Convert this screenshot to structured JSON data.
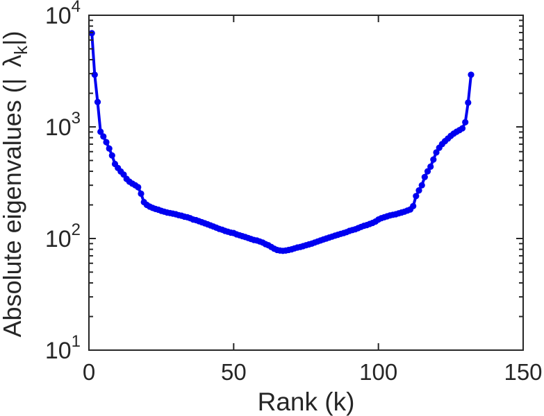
{
  "figure": {
    "background_color": "#ffffff",
    "axis_color": "#262626",
    "line_color": "#0000f0",
    "marker_shape": "filled-circle"
  },
  "chart_data": {
    "type": "line",
    "title": "",
    "xlabel": "Rank (k)",
    "ylabel": "Absolute eigenvalues (|λk|)",
    "ylabel_parts": {
      "prefix": "Absolute eigenvalues (|",
      "symbol": "λ",
      "symbol_subscript": "k",
      "suffix": "|)"
    },
    "x_axis": {
      "scale": "linear",
      "min": 0,
      "max": 150,
      "ticks": [
        0,
        50,
        100,
        150
      ],
      "tick_labels": [
        "0",
        "50",
        "100",
        "150"
      ]
    },
    "y_axis": {
      "scale": "log",
      "min": 10,
      "max": 10000,
      "tick_base": "10",
      "tick_exponents": [
        1,
        2,
        3,
        4
      ],
      "minor_tick_decades": [
        1,
        2,
        3
      ],
      "minor_tick_multiples": [
        2,
        3,
        4,
        5,
        6,
        7,
        8,
        9
      ]
    },
    "grid": false,
    "legend": "none",
    "box": true,
    "series": [
      {
        "name": "absolute-eigenvalues",
        "color": "#0000f0",
        "x": [
          1,
          2,
          3,
          4,
          5,
          6,
          7,
          8,
          9,
          10,
          11,
          12,
          13,
          14,
          15,
          16,
          17,
          18,
          19,
          20,
          21,
          22,
          23,
          24,
          25,
          26,
          27,
          28,
          29,
          30,
          31,
          32,
          33,
          34,
          35,
          36,
          37,
          38,
          39,
          40,
          41,
          42,
          43,
          44,
          45,
          46,
          47,
          48,
          49,
          50,
          51,
          52,
          53,
          54,
          55,
          56,
          57,
          58,
          59,
          60,
          61,
          62,
          63,
          64,
          65,
          66,
          67,
          68,
          69,
          70,
          71,
          72,
          73,
          74,
          75,
          76,
          77,
          78,
          79,
          80,
          81,
          82,
          83,
          84,
          85,
          86,
          87,
          88,
          89,
          90,
          91,
          92,
          93,
          94,
          95,
          96,
          97,
          98,
          99,
          100,
          101,
          102,
          103,
          104,
          105,
          106,
          107,
          108,
          109,
          110,
          111,
          112,
          113,
          114,
          115,
          116,
          117,
          118,
          119,
          120,
          121,
          122,
          123,
          124,
          125,
          126,
          127,
          128,
          129,
          130,
          131,
          132
        ],
        "y": [
          6900,
          2930,
          1670,
          905,
          820,
          730,
          640,
          555,
          465,
          428,
          398,
          374,
          342,
          323,
          310,
          300,
          288,
          252,
          212,
          200,
          193,
          188,
          184,
          181,
          177,
          174,
          171,
          169,
          167,
          165,
          162,
          160,
          157,
          155,
          152,
          148,
          146,
          143,
          140,
          137,
          134,
          131,
          128,
          125,
          122,
          120,
          117,
          115,
          113,
          112,
          109,
          107,
          105,
          103,
          101,
          99,
          97,
          96,
          94,
          92,
          89,
          87,
          84,
          81,
          79,
          78,
          77.5,
          78,
          79,
          80,
          81.5,
          83,
          84,
          85.5,
          87,
          88.5,
          90,
          92,
          94,
          96,
          98,
          100,
          102,
          104,
          106,
          108,
          110,
          112,
          114,
          117,
          119,
          121,
          124,
          127,
          130,
          132,
          135,
          138,
          142,
          148,
          152,
          155,
          158,
          161,
          163,
          165,
          168,
          171,
          174,
          178,
          182,
          195,
          240,
          270,
          300,
          355,
          400,
          440,
          510,
          590,
          650,
          700,
          745,
          785,
          830,
          870,
          905,
          935,
          970,
          1100,
          1650,
          2930
        ]
      }
    ]
  }
}
